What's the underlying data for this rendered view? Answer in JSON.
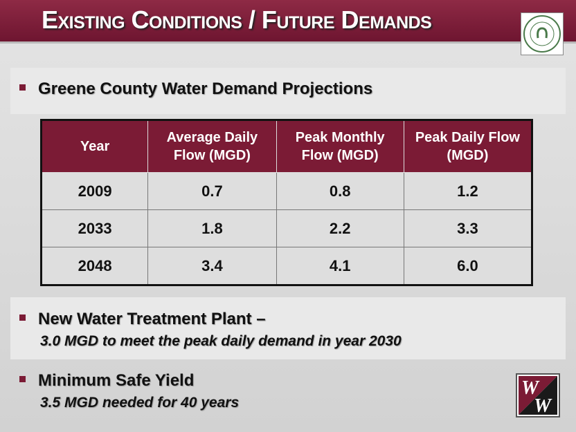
{
  "header": {
    "title": "Existing Conditions / Future Demands"
  },
  "section_1": {
    "bullet": "Greene County Water Demand Projections"
  },
  "table": {
    "columns": [
      "Year",
      "Average Daily Flow (MGD)",
      "Peak Monthly Flow (MGD)",
      "Peak Daily Flow (MGD)"
    ],
    "rows": [
      [
        "2009",
        "0.7",
        "0.8",
        "1.2"
      ],
      [
        "2033",
        "1.8",
        "2.2",
        "3.3"
      ],
      [
        "2048",
        "3.4",
        "4.1",
        "6.0"
      ]
    ]
  },
  "section_2": {
    "bullet": "New Water Treatment Plant –",
    "detail": "3.0 MGD to meet the peak daily demand in year 2030"
  },
  "section_3": {
    "bullet": "Minimum Safe Yield",
    "detail": "3.5 MGD needed for 40 years"
  },
  "brand_logo": {
    "letters": [
      "W",
      "W"
    ]
  }
}
